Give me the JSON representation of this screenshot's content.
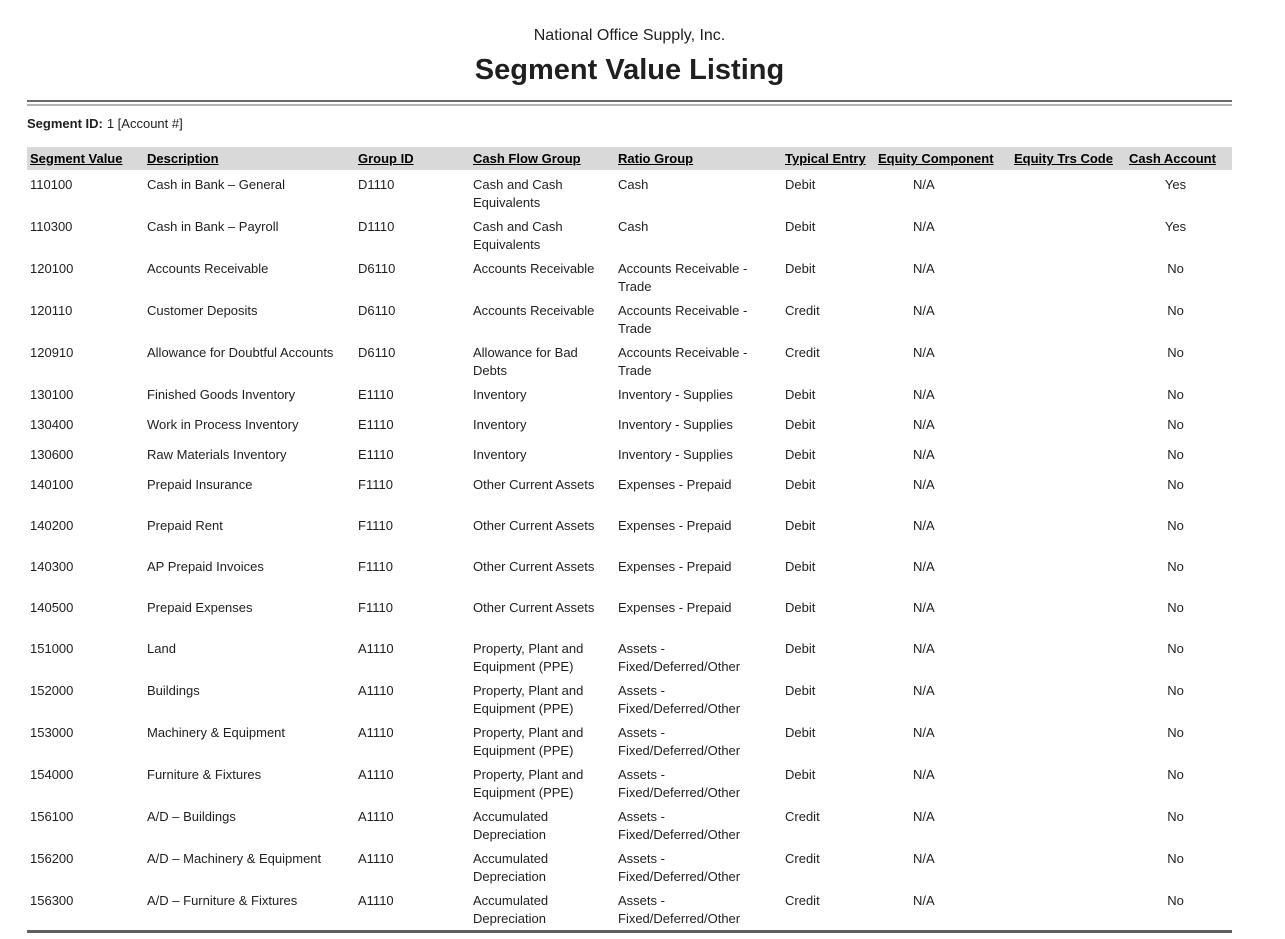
{
  "report": {
    "company": "National Office Supply, Inc.",
    "title": "Segment Value Listing",
    "segment_id_label": "Segment ID:",
    "segment_id_value": "1 [Account #]"
  },
  "table": {
    "columns": [
      "Segment Value",
      "Description",
      "Group ID",
      "Cash Flow Group",
      "Ratio Group",
      "Typical Entry",
      "Equity Component",
      "Equity Trs Code",
      "Cash Account"
    ],
    "rows": [
      {
        "segment_value": "110100",
        "description": "Cash in Bank – General",
        "group_id": "D1110",
        "cash_flow_group": "Cash and Cash Equivalents",
        "ratio_group": "Cash",
        "typical_entry": "Debit",
        "equity_component": "N/A",
        "equity_trs_code": "",
        "cash_account": "Yes"
      },
      {
        "segment_value": "110300",
        "description": "Cash in Bank – Payroll",
        "group_id": "D1110",
        "cash_flow_group": "Cash and Cash Equivalents",
        "ratio_group": "Cash",
        "typical_entry": "Debit",
        "equity_component": "N/A",
        "equity_trs_code": "",
        "cash_account": "Yes"
      },
      {
        "segment_value": "120100",
        "description": "Accounts Receivable",
        "group_id": "D6110",
        "cash_flow_group": "Accounts Receivable",
        "ratio_group": "Accounts Receivable - Trade",
        "typical_entry": "Debit",
        "equity_component": "N/A",
        "equity_trs_code": "",
        "cash_account": "No"
      },
      {
        "segment_value": "120110",
        "description": "Customer Deposits",
        "group_id": "D6110",
        "cash_flow_group": "Accounts Receivable",
        "ratio_group": "Accounts Receivable - Trade",
        "typical_entry": "Credit",
        "equity_component": "N/A",
        "equity_trs_code": "",
        "cash_account": "No"
      },
      {
        "segment_value": "120910",
        "description": "Allowance for Doubtful Accounts",
        "group_id": "D6110",
        "cash_flow_group": "Allowance for Bad Debts",
        "ratio_group": "Accounts Receivable - Trade",
        "typical_entry": "Credit",
        "equity_component": "N/A",
        "equity_trs_code": "",
        "cash_account": "No"
      },
      {
        "segment_value": "130100",
        "description": "Finished Goods Inventory",
        "group_id": "E1110",
        "cash_flow_group": "Inventory",
        "ratio_group": "Inventory - Supplies",
        "typical_entry": "Debit",
        "equity_component": "N/A",
        "equity_trs_code": "",
        "cash_account": "No",
        "compact": true
      },
      {
        "segment_value": "130400",
        "description": "Work in Process Inventory",
        "group_id": "E1110",
        "cash_flow_group": "Inventory",
        "ratio_group": "Inventory - Supplies",
        "typical_entry": "Debit",
        "equity_component": "N/A",
        "equity_trs_code": "",
        "cash_account": "No",
        "compact": true
      },
      {
        "segment_value": "130600",
        "description": "Raw Materials Inventory",
        "group_id": "E1110",
        "cash_flow_group": "Inventory",
        "ratio_group": "Inventory - Supplies",
        "typical_entry": "Debit",
        "equity_component": "N/A",
        "equity_trs_code": "",
        "cash_account": "No",
        "compact": true
      },
      {
        "segment_value": "140100",
        "description": "Prepaid Insurance",
        "group_id": "F1110",
        "cash_flow_group": "Other Current Assets",
        "ratio_group": "Expenses - Prepaid",
        "typical_entry": "Debit",
        "equity_component": "N/A",
        "equity_trs_code": "",
        "cash_account": "No"
      },
      {
        "segment_value": "140200",
        "description": "Prepaid Rent",
        "group_id": "F1110",
        "cash_flow_group": "Other Current Assets",
        "ratio_group": "Expenses - Prepaid",
        "typical_entry": "Debit",
        "equity_component": "N/A",
        "equity_trs_code": "",
        "cash_account": "No"
      },
      {
        "segment_value": "140300",
        "description": "AP Prepaid Invoices",
        "group_id": "F1110",
        "cash_flow_group": "Other Current Assets",
        "ratio_group": "Expenses - Prepaid",
        "typical_entry": "Debit",
        "equity_component": "N/A",
        "equity_trs_code": "",
        "cash_account": "No"
      },
      {
        "segment_value": "140500",
        "description": "Prepaid Expenses",
        "group_id": "F1110",
        "cash_flow_group": "Other Current Assets",
        "ratio_group": "Expenses - Prepaid",
        "typical_entry": "Debit",
        "equity_component": "N/A",
        "equity_trs_code": "",
        "cash_account": "No"
      },
      {
        "segment_value": "151000",
        "description": "Land",
        "group_id": "A1110",
        "cash_flow_group": "Property, Plant and Equipment (PPE)",
        "ratio_group": "Assets - Fixed/Deferred/Other",
        "typical_entry": "Debit",
        "equity_component": "N/A",
        "equity_trs_code": "",
        "cash_account": "No"
      },
      {
        "segment_value": "152000",
        "description": "Buildings",
        "group_id": "A1110",
        "cash_flow_group": "Property, Plant and Equipment (PPE)",
        "ratio_group": "Assets - Fixed/Deferred/Other",
        "typical_entry": "Debit",
        "equity_component": "N/A",
        "equity_trs_code": "",
        "cash_account": "No"
      },
      {
        "segment_value": "153000",
        "description": "Machinery & Equipment",
        "group_id": "A1110",
        "cash_flow_group": "Property, Plant and Equipment (PPE)",
        "ratio_group": "Assets - Fixed/Deferred/Other",
        "typical_entry": "Debit",
        "equity_component": "N/A",
        "equity_trs_code": "",
        "cash_account": "No"
      },
      {
        "segment_value": "154000",
        "description": "Furniture & Fixtures",
        "group_id": "A1110",
        "cash_flow_group": "Property, Plant and Equipment (PPE)",
        "ratio_group": "Assets - Fixed/Deferred/Other",
        "typical_entry": "Debit",
        "equity_component": "N/A",
        "equity_trs_code": "",
        "cash_account": "No"
      },
      {
        "segment_value": "156100",
        "description": "A/D – Buildings",
        "group_id": "A1110",
        "cash_flow_group": "Accumulated Depreciation",
        "ratio_group": "Assets - Fixed/Deferred/Other",
        "typical_entry": "Credit",
        "equity_component": "N/A",
        "equity_trs_code": "",
        "cash_account": "No"
      },
      {
        "segment_value": "156200",
        "description": "A/D – Machinery & Equipment",
        "group_id": "A1110",
        "cash_flow_group": "Accumulated Depreciation",
        "ratio_group": "Assets - Fixed/Deferred/Other",
        "typical_entry": "Credit",
        "equity_component": "N/A",
        "equity_trs_code": "",
        "cash_account": "No"
      },
      {
        "segment_value": "156300",
        "description": "A/D – Furniture & Fixtures",
        "group_id": "A1110",
        "cash_flow_group": "Accumulated Depreciation",
        "ratio_group": "Assets - Fixed/Deferred/Other",
        "typical_entry": "Credit",
        "equity_component": "N/A",
        "equity_trs_code": "",
        "cash_account": "No"
      }
    ]
  },
  "colors": {
    "header_bar": "#d9d9d9",
    "rule_dark": "#6b6b6b",
    "rule_light": "#b3b3b3",
    "bottom_rule": "#606060",
    "text": "#1f1f1f"
  }
}
